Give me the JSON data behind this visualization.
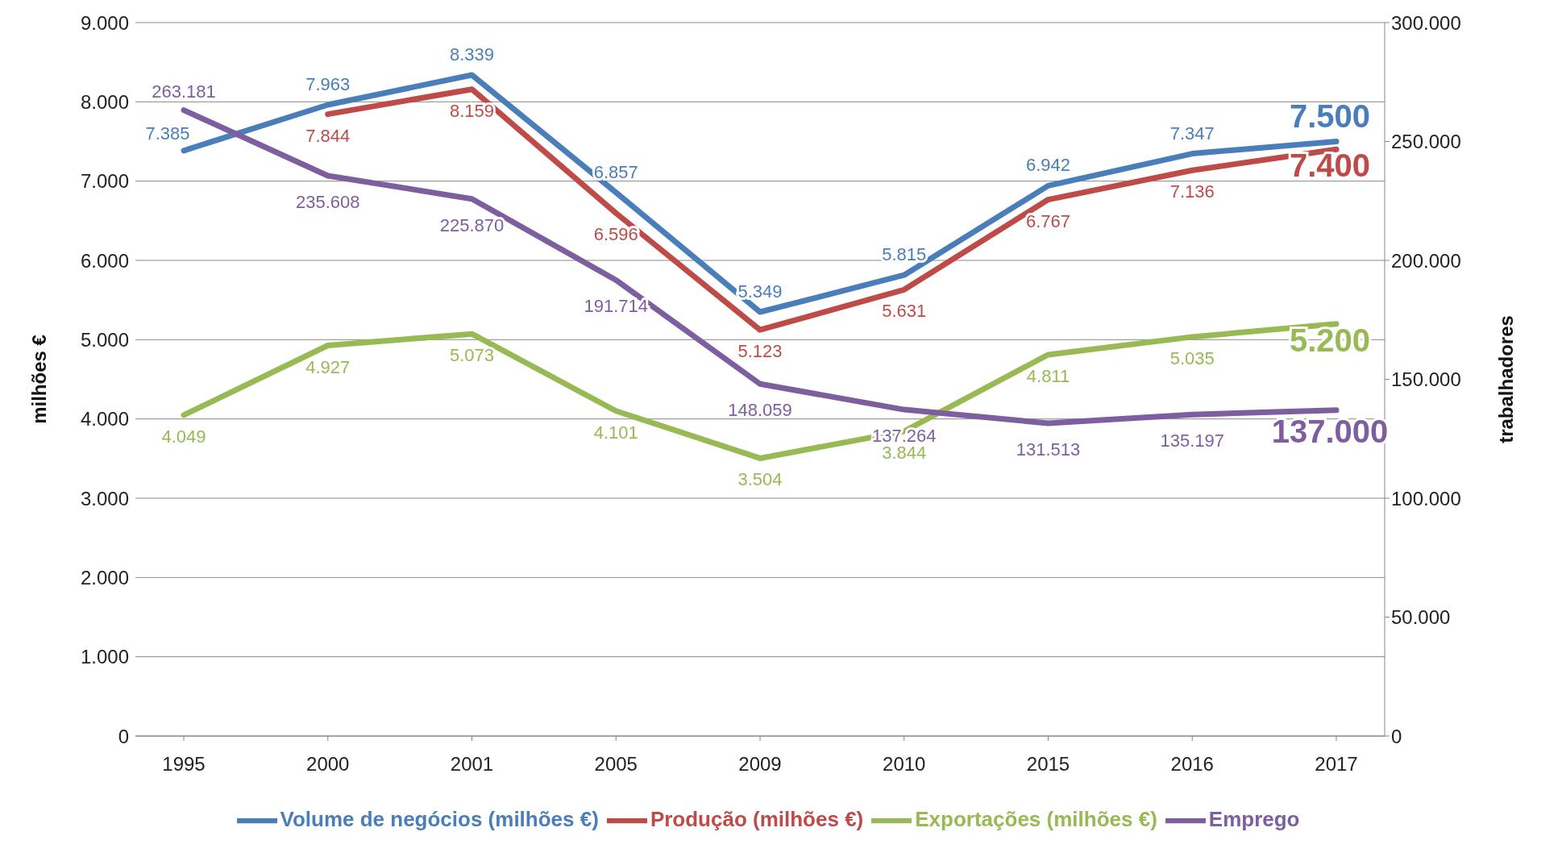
{
  "chart_data": {
    "type": "line",
    "categories": [
      "1995",
      "2000",
      "2001",
      "2005",
      "2009",
      "2010",
      "2015",
      "2016",
      "2017"
    ],
    "ylabel": "milhões €",
    "y2label": "trabalhadores",
    "ylim": [
      0,
      9000
    ],
    "yticks": [
      {
        "value": 0,
        "label": "0"
      },
      {
        "value": 1000,
        "label": "1.000"
      },
      {
        "value": 2000,
        "label": "2.000"
      },
      {
        "value": 3000,
        "label": "3.000"
      },
      {
        "value": 4000,
        "label": "4.000"
      },
      {
        "value": 5000,
        "label": "5.000"
      },
      {
        "value": 6000,
        "label": "6.000"
      },
      {
        "value": 7000,
        "label": "7.000"
      },
      {
        "value": 8000,
        "label": "8.000"
      },
      {
        "value": 9000,
        "label": "9.000"
      }
    ],
    "y2lim": [
      0,
      300000
    ],
    "y2ticks": [
      {
        "value": 0,
        "label": "0"
      },
      {
        "value": 50000,
        "label": "50.000"
      },
      {
        "value": 100000,
        "label": "100.000"
      },
      {
        "value": 150000,
        "label": "150.000"
      },
      {
        "value": 200000,
        "label": "200.000"
      },
      {
        "value": 250000,
        "label": "250.000"
      },
      {
        "value": 300000,
        "label": "300.000"
      }
    ],
    "grid": "y",
    "legend": "bottom",
    "marker": "none",
    "line_style": "solid",
    "series": [
      {
        "name": "Volume de negócios (milhões €)",
        "color": "#4a7ebb",
        "values": [
          7385,
          7963,
          8339,
          6857,
          5349,
          5815,
          6942,
          7347,
          7500
        ],
        "value_labels": [
          "7.385",
          "7.963",
          "8.339",
          "6.857",
          "5.349",
          "5.815",
          "6.942",
          "7.347",
          "7.500"
        ]
      },
      {
        "name": "Produção (milhões €)",
        "color": "#be4b48",
        "values": [
          null,
          7844,
          8159,
          6596,
          5123,
          5631,
          6767,
          7136,
          7400
        ],
        "value_labels": [
          null,
          "7.844",
          "8.159",
          "6.596",
          "5.123",
          "5.631",
          "6.767",
          "7.136",
          "7.400"
        ]
      },
      {
        "name": "Exportações (milhões €)",
        "color": "#98b954",
        "values": [
          4049,
          4927,
          5073,
          4101,
          3504,
          3844,
          4811,
          5035,
          5200
        ],
        "value_labels": [
          "4.049",
          "4.927",
          "5.073",
          "4.101",
          "3.504",
          "3.844",
          "4.811",
          "5.035",
          "5.200"
        ]
      },
      {
        "name": "Emprego",
        "color": "#7d5fa0",
        "axis": "y2",
        "values": [
          263181,
          235608,
          225870,
          191714,
          148059,
          137264,
          131513,
          135197,
          137000
        ],
        "value_labels": [
          "263.181",
          "235.608",
          "225.870",
          "191.714",
          "148.059",
          "137.264",
          "131.513",
          "135.197",
          "137.000"
        ]
      }
    ]
  }
}
